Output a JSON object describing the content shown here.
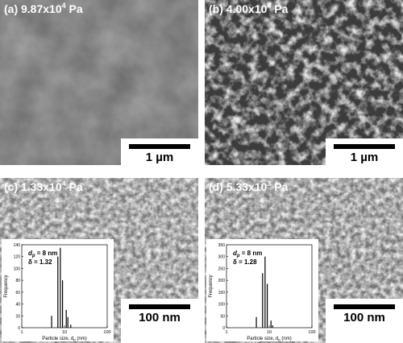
{
  "panels": [
    {
      "label": {
        "prefix": "(a) 9.87x10",
        "exponent": "4",
        "unit": " Pa"
      },
      "scale_bar": "1 µm"
    },
    {
      "label": {
        "prefix": "(b) 4.00x10",
        "exponent": "4",
        "unit": " Pa"
      },
      "scale_bar": "1 µm"
    },
    {
      "label": {
        "prefix": "(c) 1.33x10",
        "exponent": "4",
        "unit": " Pa"
      },
      "scale_bar": "100 nm",
      "chart_data": {
        "type": "bar",
        "x": [
          5,
          7,
          8,
          9,
          11,
          12,
          14
        ],
        "values": [
          20,
          120,
          135,
          80,
          30,
          18,
          5
        ],
        "color": "#000000",
        "xlim": [
          1,
          100
        ],
        "xticks": [
          1,
          10,
          100
        ],
        "xscale": "log",
        "ylim": [
          0,
          140
        ],
        "yticks": [
          0,
          20,
          40,
          60,
          80,
          100,
          120,
          140
        ],
        "ylabel": "Frequency",
        "xlabel": {
          "text": "Particle size, d",
          "sub": "p",
          "unit": " (nm)"
        },
        "annotations": {
          "dp": {
            "text": "d",
            "sub": "p",
            "rest": " = 8 nm"
          },
          "delta": "δ = 1.32"
        }
      }
    },
    {
      "label": {
        "prefix": "(d) 5.33x10",
        "exponent": "3",
        "unit": " Pa"
      },
      "scale_bar": "100 nm",
      "chart_data": {
        "type": "bar",
        "x": [
          5,
          7,
          8,
          9,
          11,
          12
        ],
        "values": [
          45,
          230,
          300,
          185,
          30,
          10
        ],
        "color": "#000000",
        "xlim": [
          1,
          100
        ],
        "xticks": [
          1,
          10,
          100
        ],
        "xscale": "log",
        "ylim": [
          0,
          350
        ],
        "yticks": [
          0,
          50,
          100,
          150,
          200,
          250,
          300,
          350
        ],
        "ylabel": "Frequency",
        "xlabel": {
          "text": "Particle size, d",
          "sub": "p",
          "unit": " (nm)"
        },
        "annotations": {
          "dp": {
            "text": "d",
            "sub": "p",
            "rest": " = 8 nm"
          },
          "delta": "δ = 1.28"
        }
      }
    }
  ]
}
